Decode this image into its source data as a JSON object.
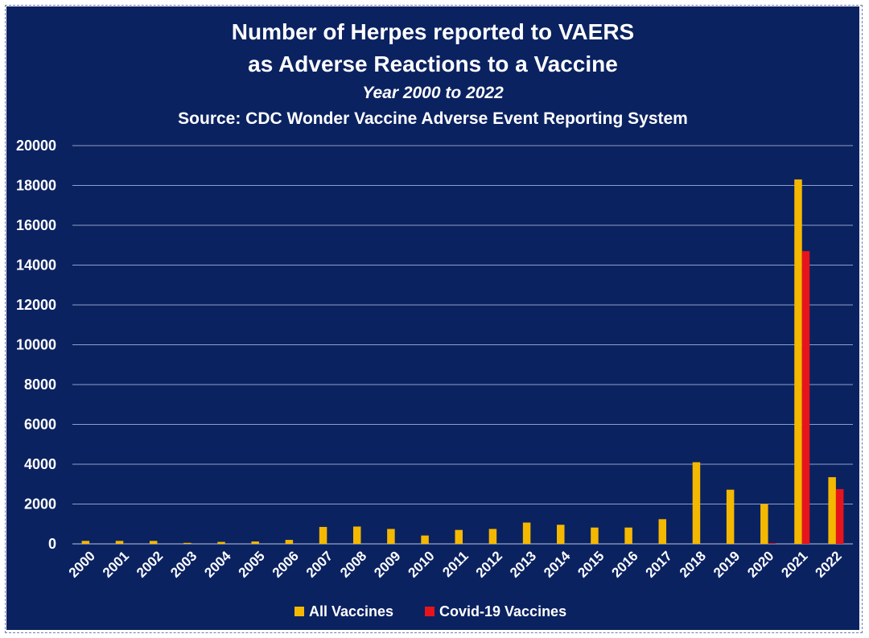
{
  "chart_data": {
    "type": "bar",
    "title": "Number of Herpes reported to VAERS",
    "title2": "as Adverse Reactions to a Vaccine",
    "subtitle": "Year 2000 to 2022",
    "source": "Source: CDC Wonder Vaccine Adverse Event Reporting System",
    "categories": [
      "2000",
      "2001",
      "2002",
      "2003",
      "2004",
      "2005",
      "2006",
      "2007",
      "2008",
      "2009",
      "2010",
      "2011",
      "2012",
      "2013",
      "2014",
      "2015",
      "2016",
      "2017",
      "2018",
      "2019",
      "2020",
      "2021",
      "2022"
    ],
    "series": [
      {
        "name": "All Vaccines",
        "color": "#f5b800",
        "values": [
          150,
          150,
          150,
          50,
          100,
          120,
          200,
          850,
          870,
          750,
          420,
          700,
          750,
          1070,
          960,
          820,
          820,
          1240,
          4100,
          2720,
          2000,
          18300,
          3350
        ]
      },
      {
        "name": "Covid-19 Vaccines",
        "color": "#e8141b",
        "values": [
          0,
          0,
          0,
          0,
          0,
          0,
          0,
          0,
          0,
          0,
          0,
          0,
          0,
          0,
          0,
          0,
          0,
          0,
          0,
          0,
          40,
          14700,
          2750
        ]
      }
    ],
    "ylim": [
      0,
      20000
    ],
    "yticks": [
      0,
      2000,
      4000,
      6000,
      8000,
      10000,
      12000,
      14000,
      16000,
      18000,
      20000
    ],
    "grid": true,
    "legend_position": "bottom"
  },
  "colors": {
    "background": "#0b2261",
    "gridline": "#8fa0c8",
    "text": "#ffffff"
  }
}
